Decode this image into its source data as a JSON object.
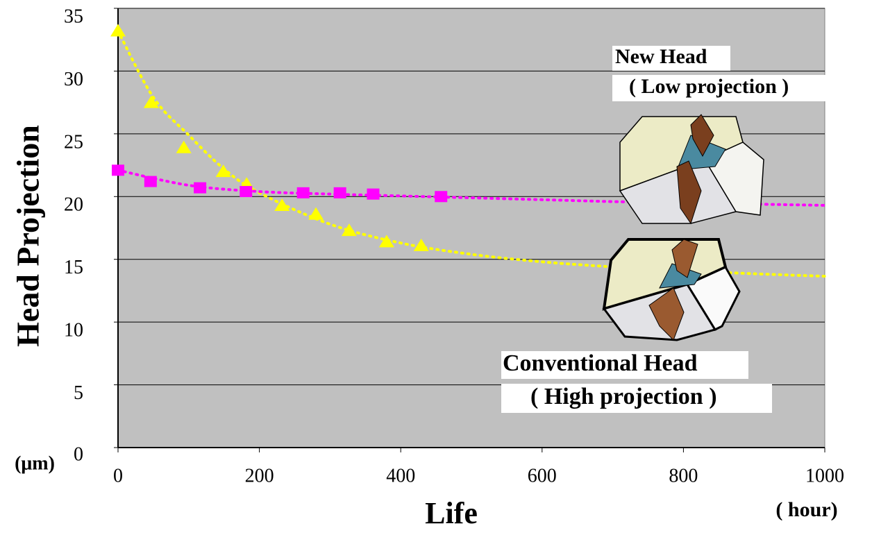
{
  "chart_data": {
    "type": "scatter",
    "y_label": "Head Projection",
    "y_unit": "(μm)",
    "x_label": "Life",
    "x_unit": "( hour)",
    "annotations": [
      "New Head",
      "( Low projection )",
      "Conventional Head",
      "( High projection )"
    ],
    "xlim": [
      0,
      1000
    ],
    "xticks": [
      0,
      200,
      400,
      600,
      800,
      1000
    ],
    "ylim": [
      0,
      35
    ],
    "yticks": [
      0,
      5,
      10,
      15,
      20,
      25,
      30,
      35
    ],
    "grid": true,
    "series": [
      {
        "color": "#ffff00",
        "marker": "triangle",
        "x": [
          0,
          47,
          93,
          149,
          182,
          232,
          280,
          327,
          380,
          429
        ],
        "values": [
          33.2,
          27.5,
          23.9,
          22.0,
          21.0,
          19.3,
          18.6,
          17.3,
          16.4,
          16.1
        ]
      },
      {
        "color": "#ff00ff",
        "marker": "square",
        "x": [
          0,
          46,
          116,
          181,
          262,
          314,
          361,
          457
        ],
        "values": [
          22.1,
          21.2,
          20.7,
          20.4,
          20.3,
          20.3,
          20.2,
          20.0
        ]
      }
    ],
    "trendlines": [
      {
        "color": "#ffff00",
        "x": [
          0,
          50,
          100,
          150,
          200,
          300,
          400,
          500,
          600,
          700,
          800,
          900,
          1000
        ],
        "values": [
          33.2,
          27.9,
          24.9,
          22.2,
          20.3,
          17.8,
          16.3,
          15.4,
          14.8,
          14.4,
          14.1,
          13.85,
          13.65
        ]
      },
      {
        "color": "#ff00ff",
        "x": [
          0,
          100,
          200,
          300,
          400,
          500,
          600,
          700,
          800,
          900,
          1000
        ],
        "values": [
          22.1,
          20.9,
          20.4,
          20.2,
          20.05,
          19.9,
          19.75,
          19.6,
          19.5,
          19.4,
          19.3
        ]
      }
    ]
  }
}
